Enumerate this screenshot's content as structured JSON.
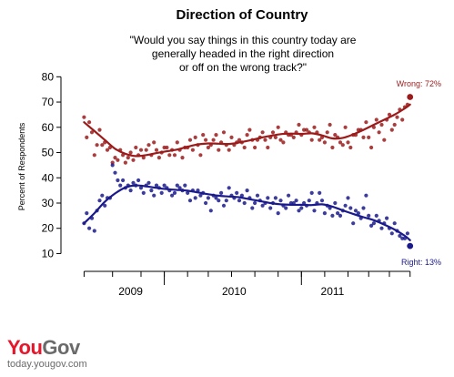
{
  "brand": {
    "logo_part1": "You",
    "logo_part2": "Gov",
    "url": "today.yougov.com"
  },
  "colors": {
    "wrong": "#9b1b1b",
    "right": "#1a1a8c",
    "logo_red": "#e8162a",
    "logo_gray": "#6a6a6a"
  },
  "chart_data": {
    "type": "scatter",
    "title": "Direction of Country",
    "subtitle_lines": [
      "\"Would you say things in this country today are",
      "generally headed in the right direction",
      "or off on the wrong track?\""
    ],
    "ylabel": "Percent of Respondents",
    "xlabel": "",
    "ylim": [
      8,
      83
    ],
    "yticks": [
      10,
      20,
      30,
      40,
      50,
      60,
      70,
      80
    ],
    "xlim": [
      -0.5,
      127.5
    ],
    "xticks_minor": [
      0,
      11,
      22,
      31,
      40,
      48,
      57,
      66,
      75,
      84,
      93,
      102,
      110,
      118,
      126
    ],
    "xticks_major": [
      31,
      84
    ],
    "year_labels": [
      {
        "label": "2009",
        "x": 18
      },
      {
        "label": "2010",
        "x": 58
      },
      {
        "label": "2011",
        "x": 96
      }
    ],
    "grid": false,
    "legend": "end labels",
    "end_labels": {
      "wrong": "Wrong: 72%",
      "right": "Right: 13%"
    },
    "series": [
      {
        "key": "wrong",
        "x": [
          0,
          1,
          2,
          3,
          4,
          5,
          6,
          7,
          8,
          9,
          10,
          11,
          12,
          13,
          14,
          15,
          16,
          17,
          18,
          19,
          20,
          21,
          22,
          23,
          24,
          25,
          26,
          27,
          28,
          29,
          30,
          31,
          32,
          33,
          34,
          35,
          36,
          37,
          38,
          39,
          40,
          41,
          42,
          43,
          44,
          45,
          46,
          47,
          48,
          49,
          50,
          51,
          52,
          53,
          54,
          55,
          56,
          57,
          58,
          59,
          60,
          61,
          62,
          63,
          64,
          65,
          66,
          67,
          68,
          69,
          70,
          71,
          72,
          73,
          74,
          75,
          76,
          77,
          78,
          79,
          80,
          81,
          82,
          83,
          84,
          85,
          86,
          87,
          88,
          89,
          90,
          91,
          92,
          93,
          94,
          95,
          96,
          97,
          98,
          99,
          100,
          101,
          102,
          103,
          104,
          105,
          106,
          107,
          108,
          109,
          110,
          111,
          112,
          113,
          114,
          115,
          116,
          117,
          118,
          119,
          120,
          121,
          122,
          123,
          124,
          125,
          126
        ],
        "y": [
          64,
          56,
          62,
          58,
          49,
          53,
          59,
          53,
          54,
          51,
          52,
          46,
          48,
          47,
          51,
          49,
          46,
          48,
          50,
          47,
          52,
          49,
          51,
          48,
          51,
          53,
          49,
          54,
          51,
          48,
          50,
          52,
          52,
          49,
          51,
          49,
          54,
          51,
          48,
          52,
          52,
          55,
          51,
          56,
          53,
          49,
          57,
          55,
          52,
          53,
          55,
          57,
          51,
          54,
          58,
          53,
          51,
          56,
          53,
          54,
          55,
          54,
          52,
          57,
          59,
          55,
          52,
          55,
          56,
          58,
          55,
          52,
          56,
          58,
          56,
          60,
          55,
          54,
          58,
          57,
          57,
          56,
          58,
          61,
          57,
          59,
          59,
          58,
          55,
          60,
          58,
          55,
          56,
          54,
          58,
          61,
          52,
          57,
          56,
          54,
          53,
          60,
          54,
          52,
          57,
          57,
          59,
          59,
          56,
          62,
          56,
          52,
          60,
          63,
          58,
          61,
          55,
          63,
          65,
          59,
          61,
          64,
          67,
          63,
          68,
          69,
          72
        ],
        "trend_x": [
          0,
          4,
          8,
          12,
          16,
          20,
          24,
          28,
          32,
          36,
          40,
          44,
          48,
          52,
          56,
          60,
          64,
          68,
          72,
          76,
          80,
          84,
          88,
          92,
          96,
          100,
          104,
          108,
          112,
          116,
          120,
          124,
          126
        ],
        "trend_y": [
          62,
          58.5,
          55,
          51.5,
          49.5,
          48.6,
          49,
          49.8,
          50.5,
          51.2,
          52.3,
          53.2,
          53.6,
          53.5,
          53.4,
          54,
          54.8,
          55.8,
          56.6,
          57.3,
          57.5,
          57.4,
          57.6,
          56.8,
          55.6,
          55.8,
          57.2,
          59,
          61,
          63,
          65,
          67.5,
          69
        ]
      },
      {
        "key": "right",
        "x": [
          0,
          1,
          2,
          3,
          4,
          5,
          6,
          7,
          8,
          9,
          10,
          11,
          12,
          13,
          14,
          15,
          16,
          17,
          18,
          19,
          20,
          21,
          22,
          23,
          24,
          25,
          26,
          27,
          28,
          29,
          30,
          31,
          32,
          33,
          34,
          35,
          36,
          37,
          38,
          39,
          40,
          41,
          42,
          43,
          44,
          45,
          46,
          47,
          48,
          49,
          50,
          51,
          52,
          53,
          54,
          55,
          56,
          57,
          58,
          59,
          60,
          61,
          62,
          63,
          64,
          65,
          66,
          67,
          68,
          69,
          70,
          71,
          72,
          73,
          74,
          75,
          76,
          77,
          78,
          79,
          80,
          81,
          82,
          83,
          84,
          85,
          86,
          87,
          88,
          89,
          90,
          91,
          92,
          93,
          94,
          95,
          96,
          97,
          98,
          99,
          100,
          101,
          102,
          103,
          104,
          105,
          106,
          107,
          108,
          109,
          110,
          111,
          112,
          113,
          114,
          115,
          116,
          117,
          118,
          119,
          120,
          121,
          122,
          123,
          124,
          125,
          126
        ],
        "y": [
          22,
          26,
          20,
          24,
          19,
          27,
          31,
          33,
          29,
          32,
          32,
          45,
          42,
          39,
          37,
          39,
          36,
          37,
          35,
          38,
          37,
          39,
          36,
          34,
          37,
          38,
          35,
          33,
          37,
          36,
          34,
          37,
          36,
          35,
          33,
          34,
          37,
          36,
          35,
          37,
          34,
          31,
          35,
          32,
          35,
          33,
          34,
          30,
          32,
          27,
          33,
          32,
          31,
          34,
          29,
          31,
          36,
          33,
          32,
          34,
          31,
          33,
          30,
          35,
          32,
          28,
          30,
          33,
          31,
          29,
          30,
          32,
          28,
          30,
          32,
          26,
          31,
          29,
          28,
          33,
          30,
          30,
          31,
          27,
          28,
          30,
          29,
          31,
          34,
          27,
          30,
          34,
          31,
          26,
          29,
          28,
          25,
          30,
          26,
          25,
          27,
          29,
          32,
          28,
          22,
          27,
          26,
          24,
          28,
          33,
          25,
          21,
          22,
          25,
          23,
          20,
          22,
          24,
          20,
          18,
          22,
          19,
          17,
          16,
          16,
          18,
          13
        ],
        "trend_x": [
          0,
          4,
          8,
          12,
          16,
          20,
          24,
          28,
          32,
          36,
          40,
          44,
          48,
          52,
          56,
          60,
          64,
          68,
          72,
          76,
          80,
          84,
          88,
          92,
          96,
          100,
          104,
          108,
          112,
          116,
          120,
          124,
          126
        ],
        "trend_y": [
          22,
          26,
          30.5,
          33.8,
          36.2,
          37,
          36.6,
          36,
          35.5,
          35.2,
          34.9,
          34.2,
          33.5,
          32.9,
          32.6,
          32.3,
          31.5,
          30.8,
          30,
          29.5,
          29.3,
          29.3,
          29.2,
          29.5,
          28.6,
          27.1,
          25.7,
          24.4,
          23.2,
          21.5,
          19.5,
          17,
          15.3
        ]
      }
    ]
  }
}
